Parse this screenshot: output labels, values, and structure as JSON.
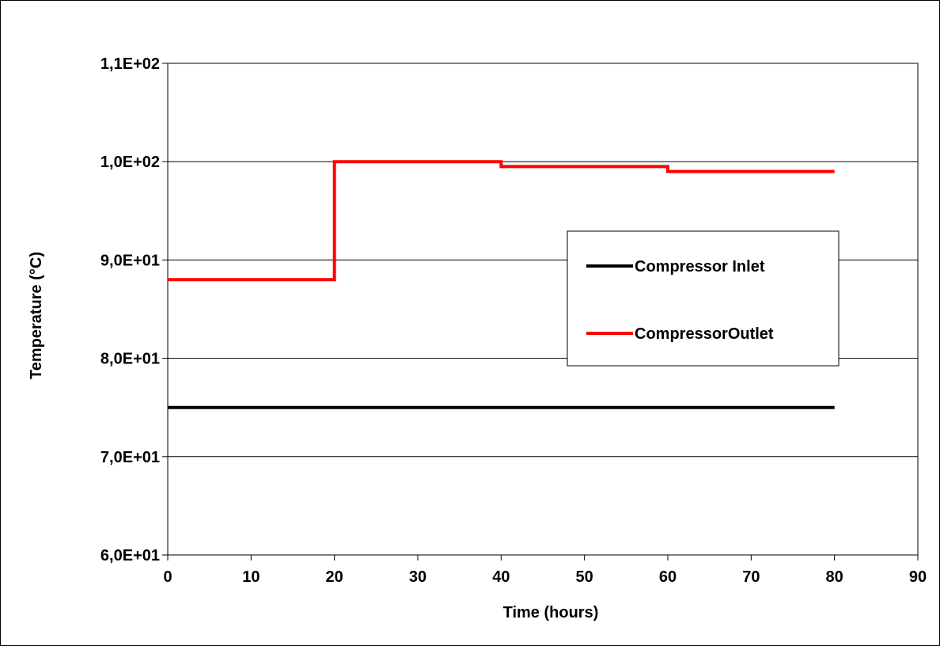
{
  "chart_data": {
    "type": "line",
    "title": "",
    "xlabel": "Time (hours)",
    "ylabel": "Temperature (°C)",
    "xlim": [
      0,
      90
    ],
    "ylim": [
      60,
      110
    ],
    "x_ticks": [
      0,
      10,
      20,
      30,
      40,
      50,
      60,
      70,
      80,
      90
    ],
    "x_tick_labels": [
      "0",
      "10",
      "20",
      "30",
      "40",
      "50",
      "60",
      "70",
      "80",
      "90"
    ],
    "y_ticks": [
      60,
      70,
      80,
      90,
      100,
      110
    ],
    "y_tick_labels": [
      "6,0E+01",
      "7,0E+01",
      "8,0E+01",
      "9,0E+01",
      "1,0E+02",
      "1,1E+02"
    ],
    "grid": "horizontal",
    "legend_position": "right",
    "series": [
      {
        "name": "Compressor Inlet",
        "color": "#000000",
        "points": [
          [
            0,
            75
          ],
          [
            80,
            75
          ]
        ]
      },
      {
        "name": "CompressorOutlet",
        "color": "#ff0000",
        "points": [
          [
            0,
            88
          ],
          [
            20,
            88
          ],
          [
            20,
            100
          ],
          [
            40,
            100
          ],
          [
            40,
            99.5
          ],
          [
            60,
            99.5
          ],
          [
            60,
            99
          ],
          [
            80,
            99
          ]
        ]
      }
    ]
  }
}
